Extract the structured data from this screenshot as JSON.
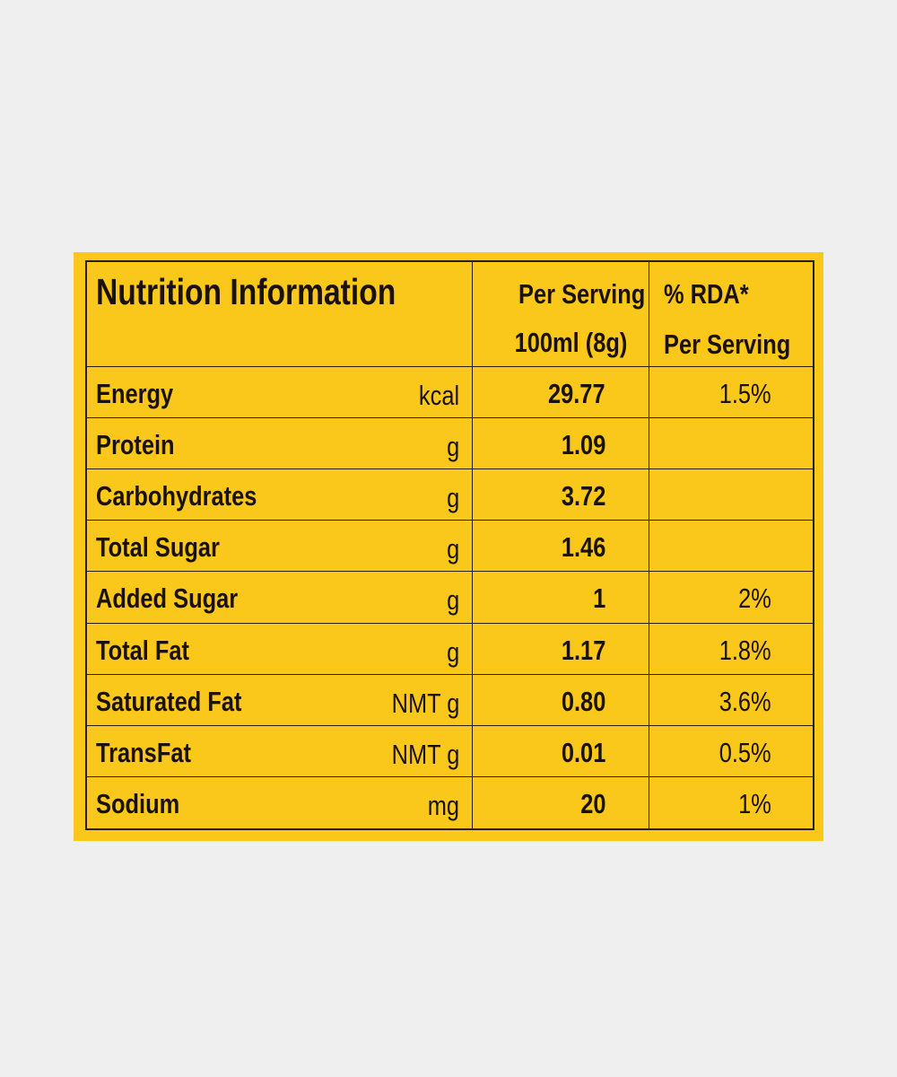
{
  "header": {
    "title": "Nutrition Information",
    "per_serving_line1": "Per Serving",
    "per_serving_line2": "100ml (8g)",
    "rda_line1": "% RDA*",
    "rda_line2": "Per Serving"
  },
  "rows": [
    {
      "name": "Energy",
      "unit": "kcal",
      "value": "29.77",
      "rda": "1.5%"
    },
    {
      "name": "Protein",
      "unit": "g",
      "value": "1.09",
      "rda": ""
    },
    {
      "name": "Carbohydrates",
      "unit": "g",
      "value": "3.72",
      "rda": ""
    },
    {
      "name": "Total Sugar",
      "unit": "g",
      "value": "1.46",
      "rda": ""
    },
    {
      "name": "Added Sugar",
      "unit": "g",
      "value": "1",
      "rda": "2%"
    },
    {
      "name": "Total Fat",
      "unit": "g",
      "value": "1.17",
      "rda": "1.8%"
    },
    {
      "name": "Saturated Fat",
      "unit": "NMT g",
      "value": "0.80",
      "rda": "3.6%"
    },
    {
      "name": "TransFat",
      "unit": "NMT g",
      "value": "0.01",
      "rda": "0.5%"
    },
    {
      "name": "Sodium",
      "unit": "mg",
      "value": "20",
      "rda": "1%"
    }
  ],
  "colors": {
    "label_bg": "#f9c81a",
    "page_bg": "#efefef",
    "ink": "#1a1208"
  }
}
